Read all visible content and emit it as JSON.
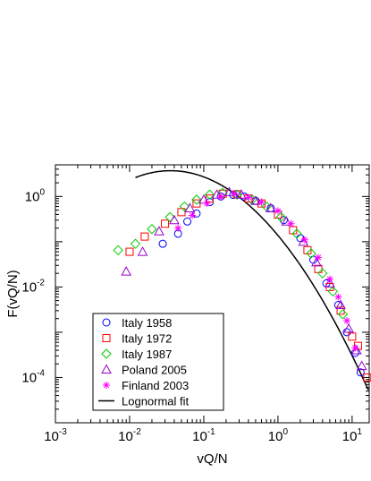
{
  "chart_data": {
    "type": "scatter",
    "xlabel": "vQ/N",
    "ylabel": "F(vQ/N)",
    "x_scale": "log",
    "y_scale": "log",
    "xlim": [
      0.001,
      17
    ],
    "ylim": [
      1e-05,
      5
    ],
    "grid": false,
    "legend_position": "bottom-left",
    "x_ticks": [
      {
        "value": 0.001,
        "base": "10",
        "exp": "-3"
      },
      {
        "value": 0.01,
        "base": "10",
        "exp": "-2"
      },
      {
        "value": 0.1,
        "base": "10",
        "exp": "-1"
      },
      {
        "value": 1,
        "base": "10",
        "exp": "0"
      },
      {
        "value": 10,
        "base": "10",
        "exp": "1"
      }
    ],
    "y_ticks": [
      {
        "value": 0.0001,
        "base": "10",
        "exp": "-4"
      },
      {
        "value": 0.01,
        "base": "10",
        "exp": "-2"
      },
      {
        "value": 1,
        "base": "10",
        "exp": "0"
      }
    ],
    "series": [
      {
        "name": "Italy 1958",
        "marker": "circle",
        "color": "#0000ff",
        "points": [
          [
            0.028,
            0.09
          ],
          [
            0.045,
            0.15
          ],
          [
            0.06,
            0.28
          ],
          [
            0.08,
            0.42
          ],
          [
            0.12,
            0.75
          ],
          [
            0.17,
            1.0
          ],
          [
            0.25,
            1.08
          ],
          [
            0.35,
            1.0
          ],
          [
            0.5,
            0.8
          ],
          [
            0.8,
            0.55
          ],
          [
            1.2,
            0.3
          ],
          [
            2.0,
            0.12
          ],
          [
            3.0,
            0.04
          ],
          [
            4.5,
            0.012
          ],
          [
            6.5,
            0.004
          ],
          [
            8.5,
            0.001
          ],
          [
            11,
            0.00035
          ],
          [
            13,
            0.00013
          ]
        ]
      },
      {
        "name": "Italy 1972",
        "marker": "square",
        "color": "#ff0000",
        "points": [
          [
            0.01,
            0.06
          ],
          [
            0.016,
            0.13
          ],
          [
            0.03,
            0.25
          ],
          [
            0.05,
            0.45
          ],
          [
            0.08,
            0.7
          ],
          [
            0.12,
            0.9
          ],
          [
            0.18,
            1.15
          ],
          [
            0.28,
            1.12
          ],
          [
            0.4,
            0.9
          ],
          [
            0.6,
            0.7
          ],
          [
            1.0,
            0.4
          ],
          [
            1.6,
            0.18
          ],
          [
            2.5,
            0.065
          ],
          [
            3.5,
            0.025
          ],
          [
            5,
            0.01
          ],
          [
            7,
            0.003
          ],
          [
            10,
            0.0008
          ],
          [
            12,
            0.0005
          ],
          [
            16,
            0.0001
          ]
        ]
      },
      {
        "name": "Italy 1987",
        "marker": "diamond",
        "color": "#00cc00",
        "points": [
          [
            0.007,
            0.065
          ],
          [
            0.012,
            0.09
          ],
          [
            0.02,
            0.19
          ],
          [
            0.035,
            0.35
          ],
          [
            0.055,
            0.6
          ],
          [
            0.08,
            0.85
          ],
          [
            0.12,
            1.1
          ],
          [
            0.18,
            1.2
          ],
          [
            0.28,
            1.1
          ],
          [
            0.45,
            0.85
          ],
          [
            0.7,
            0.6
          ],
          [
            1.1,
            0.35
          ],
          [
            1.8,
            0.15
          ],
          [
            2.8,
            0.055
          ],
          [
            4,
            0.02
          ],
          [
            5.5,
            0.008
          ],
          [
            7.5,
            0.0025
          ]
        ]
      },
      {
        "name": "Poland 2005",
        "marker": "triangle",
        "color": "#9900cc",
        "points": [
          [
            0.009,
            0.022
          ],
          [
            0.015,
            0.06
          ],
          [
            0.025,
            0.17
          ],
          [
            0.04,
            0.3
          ],
          [
            0.065,
            0.55
          ],
          [
            0.1,
            0.85
          ],
          [
            0.15,
            1.1
          ],
          [
            0.22,
            1.25
          ],
          [
            0.32,
            1.1
          ],
          [
            0.5,
            0.8
          ],
          [
            0.8,
            0.55
          ],
          [
            1.3,
            0.28
          ],
          [
            2.2,
            0.1
          ],
          [
            3.3,
            0.035
          ],
          [
            5,
            0.012
          ],
          [
            7,
            0.004
          ],
          [
            9,
            0.0012
          ],
          [
            11.5,
            0.0004
          ],
          [
            13.5,
            0.00018
          ]
        ]
      },
      {
        "name": "Finland 2003",
        "marker": "star",
        "color": "#ff00ff",
        "points": [
          [
            0.045,
            0.2
          ],
          [
            0.07,
            0.38
          ],
          [
            0.11,
            0.7
          ],
          [
            0.17,
            1.0
          ],
          [
            0.26,
            1.15
          ],
          [
            0.4,
            0.95
          ],
          [
            0.6,
            0.75
          ],
          [
            1.0,
            0.48
          ],
          [
            1.5,
            0.25
          ],
          [
            2.3,
            0.11
          ],
          [
            3.5,
            0.045
          ],
          [
            5,
            0.015
          ],
          [
            6.5,
            0.006
          ],
          [
            8.5,
            0.0018
          ],
          [
            11,
            0.00045
          ]
        ]
      }
    ],
    "fit": {
      "name": "Lognormal fit",
      "color": "#000000",
      "mu": -1.646,
      "sigma": 1.3,
      "x_range": [
        0.012,
        16.5
      ]
    }
  }
}
